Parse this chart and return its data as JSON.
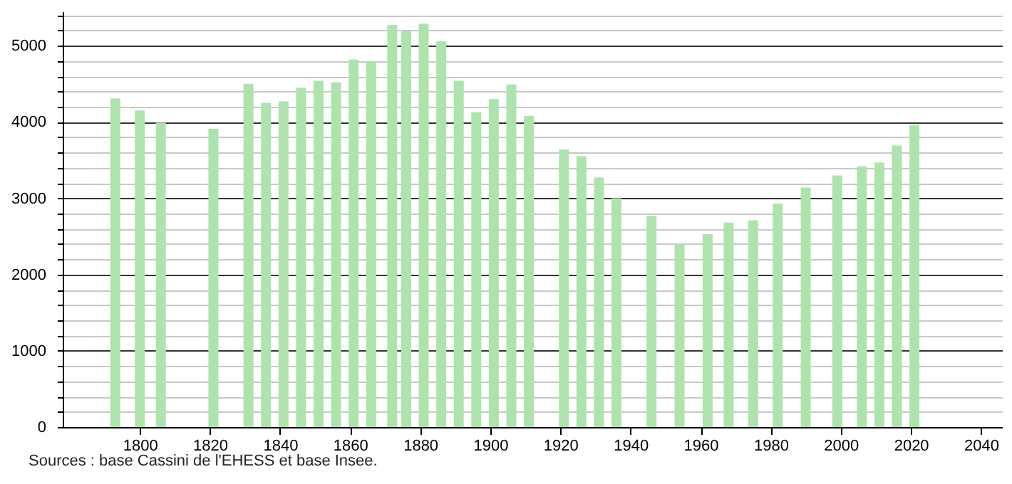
{
  "chart_data": {
    "type": "bar",
    "x": [
      1793,
      1800,
      1806,
      1821,
      1831,
      1836,
      1841,
      1846,
      1851,
      1856,
      1861,
      1866,
      1872,
      1876,
      1881,
      1886,
      1891,
      1896,
      1901,
      1906,
      1911,
      1921,
      1926,
      1931,
      1936,
      1946,
      1954,
      1962,
      1968,
      1975,
      1982,
      1990,
      1999,
      2006,
      2011,
      2016,
      2021
    ],
    "values": [
      4310,
      4150,
      3990,
      3910,
      4500,
      4250,
      4270,
      4450,
      4540,
      4520,
      4820,
      4800,
      5270,
      5190,
      5290,
      5060,
      4540,
      4130,
      4300,
      4490,
      4080,
      3640,
      3550,
      3270,
      3000,
      2770,
      2400,
      2530,
      2680,
      2710,
      2930,
      3140,
      3300,
      3420,
      3470,
      3690,
      3960
    ],
    "color": "#aee3ae",
    "xlim": [
      1778,
      2046
    ],
    "xticks": [
      1800,
      1820,
      1840,
      1860,
      1880,
      1900,
      1920,
      1940,
      1960,
      1980,
      2000,
      2020,
      2040
    ],
    "ylim": [
      0,
      5450
    ],
    "yticks": [
      0,
      {
        "value": 200,
        "label": null
      },
      {
        "value": 400,
        "label": null
      },
      {
        "value": 600,
        "label": null
      },
      {
        "value": 800,
        "label": null
      },
      1000,
      {
        "value": 1200,
        "label": null
      },
      {
        "value": 1400,
        "label": null
      },
      {
        "value": 1600,
        "label": null
      },
      {
        "value": 1800,
        "label": null
      },
      2000,
      {
        "value": 2200,
        "label": null
      },
      {
        "value": 2400,
        "label": null
      },
      {
        "value": 2600,
        "label": null
      },
      {
        "value": 2800,
        "label": null
      },
      3000,
      {
        "value": 3200,
        "label": null
      },
      {
        "value": 3400,
        "label": null
      },
      {
        "value": 3600,
        "label": null
      },
      {
        "value": 3800,
        "label": null
      },
      4000,
      {
        "value": 4200,
        "label": null
      },
      {
        "value": 4400,
        "label": null
      },
      {
        "value": 4600,
        "label": null
      },
      {
        "value": 4800,
        "label": null
      },
      5000,
      {
        "value": 5200,
        "label": null
      },
      {
        "value": 5400,
        "label": null
      }
    ],
    "grid": "y",
    "annotations": [
      "Sources : base Cassini de l'EHESS et base Insee."
    ]
  }
}
